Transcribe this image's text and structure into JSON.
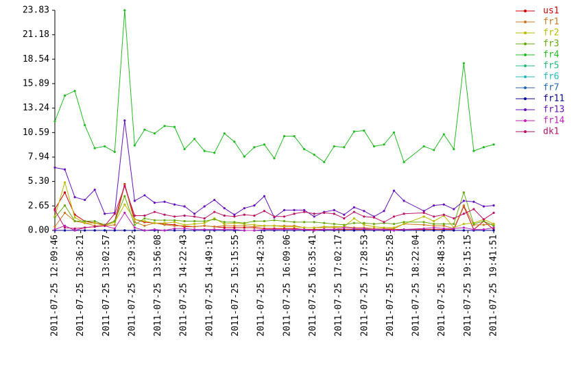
{
  "chart_data": {
    "type": "line",
    "x": [
      0,
      1,
      2,
      3,
      4,
      5,
      6,
      7,
      8,
      9,
      10,
      11,
      12,
      13,
      14,
      15,
      16,
      17,
      18,
      19,
      20,
      21,
      22,
      23,
      24,
      25,
      26,
      27,
      28,
      29,
      30,
      31,
      32,
      33,
      34,
      35,
      37,
      38,
      39,
      40,
      41,
      42,
      43,
      44
    ],
    "xlim": [
      0,
      44
    ],
    "xticks": [
      {
        "value": 0,
        "label": "2011-07-25 12:09:46"
      },
      {
        "value": 2.59,
        "label": "2011-07-25 12:36:21"
      },
      {
        "value": 5.18,
        "label": "2011-07-25 13:02:57"
      },
      {
        "value": 7.76,
        "label": "2011-07-25 13:29:32"
      },
      {
        "value": 10.35,
        "label": "2011-07-25 13:56:08"
      },
      {
        "value": 12.94,
        "label": "2011-07-25 14:22:43"
      },
      {
        "value": 15.53,
        "label": "2011-07-25 14:49:19"
      },
      {
        "value": 18.12,
        "label": "2011-07-25 15:15:55"
      },
      {
        "value": 20.71,
        "label": "2011-07-25 15:42:30"
      },
      {
        "value": 23.29,
        "label": "2011-07-25 16:09:06"
      },
      {
        "value": 25.88,
        "label": "2011-07-25 16:35:41"
      },
      {
        "value": 28.47,
        "label": "2011-07-25 17:02:17"
      },
      {
        "value": 31.06,
        "label": "2011-07-25 17:28:53"
      },
      {
        "value": 33.65,
        "label": "2011-07-25 17:55:28"
      },
      {
        "value": 36.24,
        "label": "2011-07-25 18:22:04"
      },
      {
        "value": 38.82,
        "label": "2011-07-25 18:48:39"
      },
      {
        "value": 41.41,
        "label": "2011-07-25 19:15:15"
      },
      {
        "value": 44,
        "label": "2011-07-25 19:41:51"
      }
    ],
    "ylim": [
      0,
      23.83
    ],
    "yticks": [
      {
        "value": 0,
        "label": "0.00"
      },
      2.65,
      {
        "value": 5.3,
        "label": "5.30"
      },
      7.94,
      10.59,
      13.24,
      15.89,
      18.54,
      21.18,
      23.83
    ],
    "series": [
      {
        "name": "us1",
        "color": "#cc0000",
        "values": [
          2.3,
          4.1,
          1.7,
          1.0,
          0.8,
          0.6,
          1.0,
          5.0,
          1.2,
          0.9,
          0.8,
          0.7,
          0.6,
          0.4,
          0.4,
          0.5,
          0.4,
          0.3,
          0.3,
          0.3,
          0.3,
          0.2,
          0.2,
          0.2,
          0.2,
          0.1,
          0.1,
          0.1,
          0.1,
          0.1,
          0.1,
          0.1,
          0.1,
          0.1,
          0.1,
          0.1,
          0.1,
          0.1,
          0.1,
          0.1,
          2.6,
          0.1,
          1.0,
          0.1
        ]
      },
      {
        "name": "fr1",
        "color": "#cc7722",
        "values": [
          0.4,
          1.9,
          1.0,
          0.8,
          0.5,
          0.5,
          0.6,
          4.9,
          0.9,
          0.5,
          0.8,
          0.6,
          0.5,
          0.5,
          0.4,
          0.5,
          0.4,
          0.5,
          0.5,
          0.5,
          0.4,
          0.5,
          0.5,
          0.5,
          0.5,
          0.3,
          0.3,
          0.3,
          0.3,
          0.4,
          0.3,
          0.3,
          0.2,
          0.2,
          0.2,
          0.7,
          0.6,
          0.5,
          0.5,
          0.2,
          2.7,
          0.6,
          0.6,
          0.7
        ]
      },
      {
        "name": "fr2",
        "color": "#bbbb00",
        "values": [
          1.5,
          5.2,
          1.4,
          0.8,
          0.8,
          0.5,
          0.9,
          2.8,
          1.2,
          1.0,
          0.8,
          0.8,
          0.9,
          0.6,
          0.7,
          0.8,
          1.3,
          0.7,
          0.8,
          0.7,
          0.6,
          0.5,
          0.5,
          0.4,
          0.4,
          0.3,
          0.3,
          0.4,
          0.4,
          0.4,
          1.3,
          0.6,
          0.4,
          0.3,
          0.3,
          0.7,
          1.5,
          1.0,
          1.6,
          0.3,
          0.7,
          0.8,
          1.2,
          0.7
        ]
      },
      {
        "name": "fr3",
        "color": "#66aa11",
        "values": [
          1.4,
          2.7,
          1.0,
          1.0,
          1.0,
          0.6,
          1.0,
          3.7,
          0.6,
          1.3,
          1.1,
          1.1,
          1.1,
          1.0,
          1.0,
          1.0,
          1.2,
          0.9,
          0.9,
          0.8,
          1.0,
          1.0,
          1.1,
          1.0,
          0.9,
          0.9,
          0.9,
          0.8,
          0.7,
          0.6,
          0.8,
          0.8,
          0.7,
          0.8,
          0.7,
          0.9,
          0.9,
          0.7,
          0.7,
          0.7,
          4.1,
          0.7,
          1.0,
          0.5
        ]
      },
      {
        "name": "fr4",
        "color": "#22bb22",
        "values": [
          11.8,
          14.6,
          15.1,
          11.4,
          8.9,
          9.1,
          8.5,
          23.83,
          9.2,
          10.9,
          10.5,
          11.3,
          11.2,
          8.8,
          9.9,
          8.6,
          8.4,
          10.5,
          9.6,
          8.0,
          9.0,
          9.3,
          7.8,
          10.2,
          10.2,
          8.8,
          8.2,
          7.4,
          9.1,
          9.0,
          10.7,
          10.8,
          9.1,
          9.3,
          10.6,
          7.4,
          9.1,
          8.7,
          10.4,
          8.8,
          18.1,
          8.6,
          9.0,
          9.3
        ]
      },
      {
        "name": "fr5",
        "color": "#22bb77",
        "values": [
          0,
          0,
          0,
          0,
          0,
          0,
          0,
          0,
          0,
          0,
          0,
          0,
          0,
          0,
          0,
          0,
          0,
          0,
          0,
          0,
          0,
          0,
          0,
          0,
          0,
          0,
          0,
          0,
          0,
          0,
          0,
          0,
          0,
          0,
          0,
          0,
          0,
          0,
          0,
          0,
          0,
          0,
          0,
          0
        ]
      },
      {
        "name": "fr6",
        "color": "#22bbbb",
        "values": [
          0,
          0,
          0,
          0,
          0,
          0,
          0,
          0,
          0,
          0,
          0,
          0,
          0,
          0,
          0,
          0,
          0,
          0,
          0,
          0,
          0,
          0,
          0,
          0,
          0,
          0,
          0,
          0,
          0,
          0,
          0,
          0,
          0,
          0,
          0,
          0,
          0,
          0,
          0,
          0,
          0,
          0,
          0,
          0
        ]
      },
      {
        "name": "fr7",
        "color": "#2266bb",
        "values": [
          0,
          0,
          0,
          0,
          0,
          0,
          0,
          0,
          0,
          0,
          0,
          0,
          0,
          0,
          0,
          0,
          0,
          0,
          0,
          0,
          0,
          0,
          0,
          0,
          0,
          0,
          0,
          0,
          0,
          0,
          0,
          0,
          0,
          0,
          0,
          0,
          0,
          0,
          0,
          0,
          0,
          0,
          0,
          0
        ]
      },
      {
        "name": "fr11",
        "color": "#000099",
        "values": [
          0,
          0,
          0,
          0,
          0,
          0,
          0,
          0,
          0,
          0,
          0,
          0,
          0,
          0,
          0,
          0,
          0,
          0,
          0,
          0,
          0,
          0,
          0,
          0,
          0,
          0,
          0,
          0,
          0,
          0,
          0,
          0,
          0,
          0,
          0,
          0,
          0,
          0,
          0,
          0,
          0,
          0,
          0,
          0
        ]
      },
      {
        "name": "fr13",
        "color": "#6611bb",
        "values": [
          6.8,
          6.6,
          3.6,
          3.3,
          4.4,
          1.8,
          1.9,
          11.9,
          3.2,
          3.8,
          3.0,
          3.1,
          2.8,
          2.6,
          1.8,
          2.6,
          3.3,
          2.4,
          1.7,
          2.4,
          2.7,
          3.7,
          1.4,
          2.2,
          2.2,
          2.2,
          1.5,
          2.0,
          2.2,
          1.7,
          2.5,
          2.1,
          1.5,
          2.1,
          4.3,
          3.2,
          2.1,
          2.7,
          2.8,
          2.3,
          3.2,
          3.1,
          2.6,
          2.7
        ]
      },
      {
        "name": "fr14",
        "color": "#bb22bb",
        "values": [
          0.1,
          0.5,
          0.0,
          0.3,
          0.4,
          0.5,
          0.2,
          1.9,
          0.3,
          0.0,
          0.1,
          0.0,
          0.2,
          0.2,
          0.1,
          0.1,
          0.1,
          0.1,
          0.1,
          0.0,
          0.0,
          0.1,
          0.1,
          0.1,
          0.1,
          0.1,
          0.0,
          0.1,
          0.1,
          0.3,
          0.2,
          0.2,
          0.1,
          0.1,
          0.0,
          0.1,
          0.2,
          0.3,
          0.2,
          0.2,
          0.3,
          0.1,
          0.1,
          0.3
        ]
      },
      {
        "name": "dk1",
        "color": "#bb1166",
        "values": [
          2.2,
          0.3,
          0.2,
          0.3,
          0.4,
          0.5,
          1.8,
          4.8,
          1.6,
          1.6,
          2.0,
          1.7,
          1.5,
          1.6,
          1.5,
          1.3,
          2.0,
          1.6,
          1.5,
          1.7,
          1.6,
          2.1,
          1.5,
          1.5,
          1.8,
          2.0,
          1.8,
          1.9,
          1.8,
          1.3,
          2.0,
          1.5,
          1.4,
          0.9,
          1.5,
          1.8,
          1.9,
          1.5,
          1.7,
          1.3,
          1.8,
          2.3,
          1.2,
          1.9
        ]
      }
    ]
  }
}
